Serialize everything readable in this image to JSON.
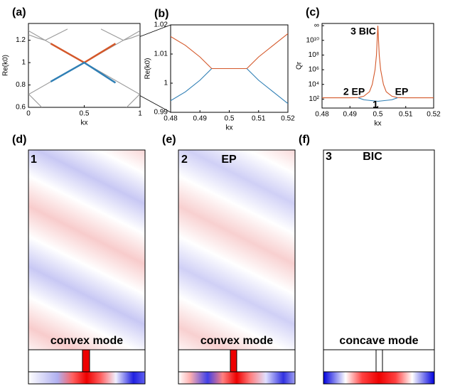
{
  "chart_data": [
    {
      "type": "line",
      "label": "(a)",
      "xlabel": "kx",
      "ylabel": "Re(k0)",
      "xlim": [
        0,
        1
      ],
      "ylim": [
        0.6,
        1.35
      ],
      "xticks": [
        0,
        0.5,
        1
      ],
      "yticks": [
        0.6,
        0.8,
        1,
        1.2
      ],
      "series": [
        {
          "color": "#9a9a9a",
          "x": [
            0,
            1
          ],
          "values": [
            1.285,
            0.715
          ]
        },
        {
          "color": "#9a9a9a",
          "x": [
            0,
            1
          ],
          "values": [
            0.715,
            1.285
          ]
        },
        {
          "color": "#9a9a9a",
          "x": [
            0,
            0.08,
            0.15,
            0.25,
            0.35
          ],
          "values": [
            1.25,
            1.22,
            1.2,
            1.25,
            1.3
          ]
        },
        {
          "color": "#9a9a9a",
          "x": [
            0.65,
            0.75,
            0.85,
            0.92,
            1
          ],
          "values": [
            1.3,
            1.25,
            1.2,
            1.22,
            1.25
          ]
        },
        {
          "color": "#9a9a9a",
          "x": [
            0,
            0.06,
            0.12
          ],
          "values": [
            0.72,
            0.66,
            0.6
          ]
        },
        {
          "color": "#9a9a9a",
          "x": [
            0.88,
            0.94,
            1
          ],
          "values": [
            0.6,
            0.66,
            0.72
          ]
        },
        {
          "color": "#d4582a",
          "x": [
            0.2,
            0.5,
            0.78
          ],
          "values": [
            1.17,
            1.0,
            1.17
          ]
        },
        {
          "color": "#2f7fb5",
          "x": [
            0.2,
            0.5,
            0.78
          ],
          "values": [
            0.83,
            1.0,
            0.82
          ]
        }
      ]
    },
    {
      "type": "line",
      "label": "(b)",
      "xlabel": "kx",
      "ylabel": "Re(k0)",
      "xlim": [
        0.48,
        0.52
      ],
      "ylim": [
        0.99,
        1.02
      ],
      "xticks": [
        0.48,
        0.49,
        0.5,
        0.51,
        0.52
      ],
      "yticks": [
        0.99,
        1,
        1.01,
        1.02
      ],
      "series": [
        {
          "color": "#d4582a",
          "x": [
            0.48,
            0.485,
            0.49,
            0.493,
            0.494,
            0.5,
            0.506,
            0.507,
            0.51,
            0.515,
            0.52
          ],
          "values": [
            1.016,
            1.013,
            1.009,
            1.006,
            1.005,
            1.005,
            1.005,
            1.006,
            1.009,
            1.013,
            1.017
          ]
        },
        {
          "color": "#2f7fb5",
          "x": [
            0.48,
            0.485,
            0.49,
            0.493,
            0.494,
            0.5,
            0.506,
            0.507,
            0.51,
            0.515,
            0.52
          ],
          "values": [
            0.994,
            0.997,
            1.001,
            1.004,
            1.005,
            null,
            1.005,
            1.004,
            1.001,
            0.997,
            0.993
          ]
        }
      ]
    },
    {
      "type": "line",
      "label": "(c)",
      "xlabel": "kx",
      "ylabel": "Qr",
      "log_y": true,
      "xlim": [
        0.48,
        0.52
      ],
      "ylim": [
        6,
        2000000000000
      ],
      "xticks": [
        0.48,
        0.49,
        0.5,
        0.51,
        0.52
      ],
      "yticks": [
        {
          "value": 100,
          "label": "10²"
        },
        {
          "value": 10000,
          "label": "10⁴"
        },
        {
          "value": 1000000,
          "label": "10⁶"
        },
        {
          "value": 100000000,
          "label": "10⁸"
        },
        {
          "value": 10000000000,
          "label": "10¹⁰"
        },
        {
          "value": 1000000000000,
          "label": "∞"
        }
      ],
      "annotations": [
        "3 BIC",
        "2 EP",
        "EP",
        "1"
      ],
      "series": [
        {
          "color": "#d4582a",
          "x": [
            0.48,
            0.49,
            0.493,
            0.495,
            0.497,
            0.498,
            0.499,
            0.4995,
            0.5,
            0.5005,
            0.501,
            0.502,
            0.503,
            0.505,
            0.507,
            0.51,
            0.52
          ],
          "values": [
            150,
            150,
            160,
            250,
            1000,
            10000,
            1000000,
            100000000,
            1000000000000,
            100000000,
            1000000,
            10000,
            1000,
            250,
            160,
            150,
            150
          ]
        },
        {
          "color": "#2f7fb5",
          "x": [
            0.493,
            0.495,
            0.5,
            0.505,
            0.507
          ],
          "values": [
            150,
            80,
            50,
            80,
            150
          ]
        }
      ]
    }
  ],
  "field_panels": [
    {
      "tag": "(d)",
      "number": "1",
      "mode": "convex mode"
    },
    {
      "tag": "(e)",
      "number": "2",
      "note": "EP",
      "mode": "convex mode"
    },
    {
      "tag": "(f)",
      "number": "3",
      "note": "BIC",
      "mode": "concave mode"
    }
  ]
}
